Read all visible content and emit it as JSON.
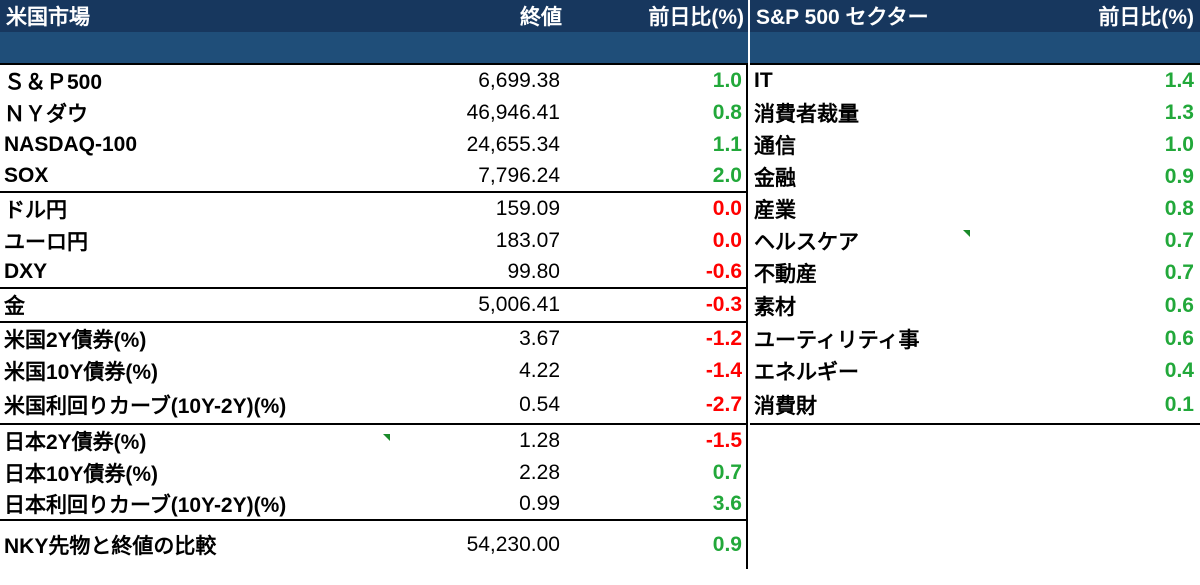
{
  "left_header": {
    "name": "米国市場",
    "value": "終値",
    "change": "前日比(%)"
  },
  "right_header": {
    "name": "S&P 500 セクター",
    "change": "前日比(%)"
  },
  "markets": [
    {
      "name": "Ｓ＆Ｐ500",
      "value": "6,699.38",
      "change": "1.0",
      "dir": "pos"
    },
    {
      "name": "ＮＹダウ",
      "value": "46,946.41",
      "change": "0.8",
      "dir": "pos"
    },
    {
      "name": "NASDAQ-100",
      "value": "24,655.34",
      "change": "1.1",
      "dir": "pos"
    },
    {
      "name": "SOX",
      "value": "7,796.24",
      "change": "2.0",
      "dir": "pos"
    },
    {
      "name": "ドル円",
      "value": "159.09",
      "change": "0.0",
      "dir": "neg"
    },
    {
      "name": "ユーロ円",
      "value": "183.07",
      "change": "0.0",
      "dir": "neg"
    },
    {
      "name": "DXY",
      "value": "99.80",
      "change": "-0.6",
      "dir": "neg"
    },
    {
      "name": "金",
      "value": "5,006.41",
      "change": "-0.3",
      "dir": "neg"
    },
    {
      "name": "米国2Y債券(%)",
      "value": "3.67",
      "change": "-1.2",
      "dir": "neg"
    },
    {
      "name": "米国10Y債券(%)",
      "value": "4.22",
      "change": "-1.4",
      "dir": "neg"
    },
    {
      "name": "米国利回りカーブ(10Y-2Y)(%)",
      "value": "0.54",
      "change": "-2.7",
      "dir": "neg"
    },
    {
      "name": "日本2Y債券(%)",
      "value": "1.28",
      "change": "-1.5",
      "dir": "neg"
    },
    {
      "name": "日本10Y債券(%)",
      "value": "2.28",
      "change": "0.7",
      "dir": "pos"
    },
    {
      "name": "日本利回りカーブ(10Y-2Y)(%)",
      "value": "0.99",
      "change": "3.6",
      "dir": "pos"
    },
    {
      "name": "NKY先物と終値の比較",
      "value": "54,230.00",
      "change": "0.9",
      "dir": "pos"
    }
  ],
  "sectors": [
    {
      "name": "IT",
      "change": "1.4"
    },
    {
      "name": "消費者裁量",
      "change": "1.3"
    },
    {
      "name": "通信",
      "change": "1.0"
    },
    {
      "name": "金融",
      "change": "0.9"
    },
    {
      "name": "産業",
      "change": "0.8"
    },
    {
      "name": "ヘルスケア",
      "change": "0.7"
    },
    {
      "name": "不動産",
      "change": "0.7"
    },
    {
      "name": "素材",
      "change": "0.6"
    },
    {
      "name": "ユーティリティ事",
      "change": "0.6"
    },
    {
      "name": "エネルギー",
      "change": "0.4"
    },
    {
      "name": "消費財",
      "change": "0.1"
    }
  ],
  "colors": {
    "header_bg": "#17375e",
    "positive": "#22a83a",
    "negative": "#ff0000"
  }
}
